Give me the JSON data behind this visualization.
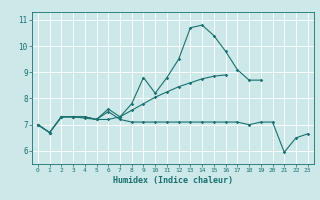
{
  "xlabel": "Humidex (Indice chaleur)",
  "bg_color": "#cce8e8",
  "line_color": "#1a7070",
  "grid_color": "#ffffff",
  "xlim": [
    -0.5,
    23.5
  ],
  "ylim": [
    5.5,
    11.3
  ],
  "xticks": [
    0,
    1,
    2,
    3,
    4,
    5,
    6,
    7,
    8,
    9,
    10,
    11,
    12,
    13,
    14,
    15,
    16,
    17,
    18,
    19,
    20,
    21,
    22,
    23
  ],
  "yticks": [
    6,
    7,
    8,
    9,
    10,
    11
  ],
  "line1_x": [
    0,
    1,
    2,
    3,
    4,
    5,
    6,
    7,
    8,
    9,
    10,
    11,
    12,
    13,
    14,
    15,
    16,
    17,
    18,
    19,
    20,
    21,
    22,
    23
  ],
  "line1_y": [
    7.0,
    6.7,
    7.3,
    7.3,
    7.3,
    7.2,
    7.5,
    7.2,
    7.1,
    7.1,
    7.1,
    7.1,
    7.1,
    7.1,
    7.1,
    7.1,
    7.1,
    7.1,
    7.0,
    7.1,
    7.1,
    5.95,
    6.5,
    6.65
  ],
  "line2_x": [
    0,
    1,
    2,
    3,
    4,
    5,
    6,
    7,
    8,
    9,
    10,
    11,
    12,
    13,
    14,
    15,
    16,
    17,
    18,
    19,
    20,
    21,
    22,
    23
  ],
  "line2_y": [
    7.0,
    6.7,
    7.3,
    7.3,
    7.3,
    7.2,
    7.6,
    7.3,
    7.8,
    8.8,
    8.2,
    8.8,
    9.5,
    10.7,
    10.8,
    10.4,
    9.8,
    9.1,
    8.7,
    8.7,
    null,
    null,
    null,
    null
  ],
  "line3_x": [
    0,
    1,
    2,
    3,
    4,
    5,
    6,
    7,
    8,
    9,
    10,
    11,
    12,
    13,
    14,
    15,
    16,
    17,
    18,
    19,
    20,
    21,
    22,
    23
  ],
  "line3_y": [
    7.0,
    6.7,
    7.3,
    7.3,
    7.25,
    7.2,
    7.2,
    7.3,
    7.55,
    7.8,
    8.05,
    8.25,
    8.45,
    8.6,
    8.75,
    8.85,
    8.9,
    null,
    null,
    null,
    null,
    null,
    null,
    null
  ]
}
